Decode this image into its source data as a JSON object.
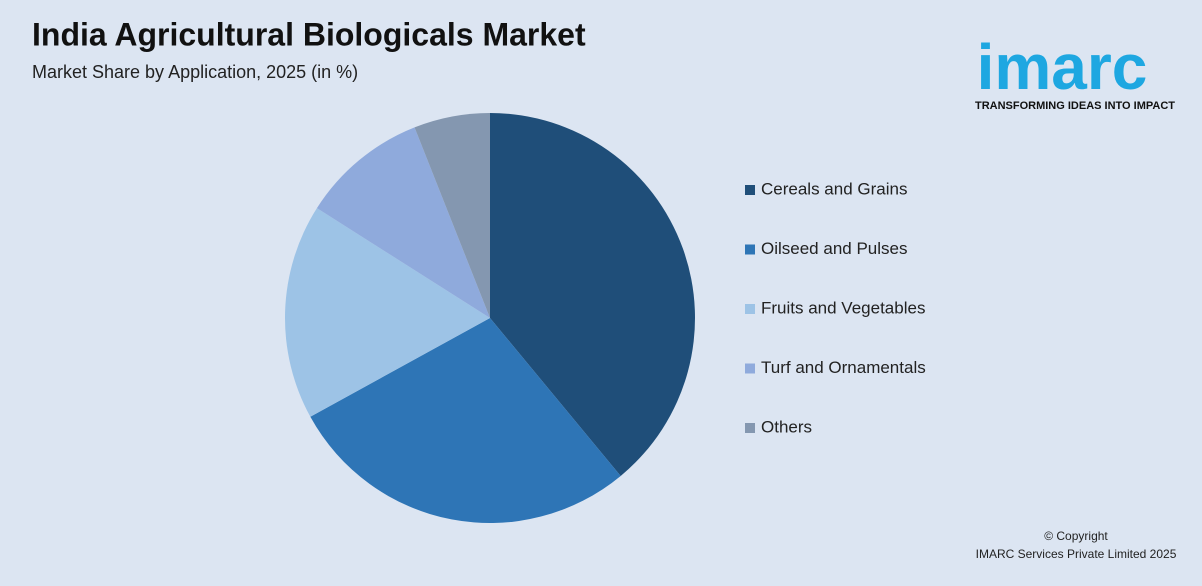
{
  "chart_data": {
    "type": "pie",
    "title": "India Agricultural Biologicals Market",
    "subtitle": "Market Share by Application, 2025 (in %)",
    "categories": [
      "Cereals and Grains",
      "Oilseed and Pulses",
      "Fruits and Vegetables",
      "Turf and Ornamentals",
      "Others"
    ],
    "values": [
      39,
      28,
      17,
      10,
      6
    ],
    "colors": [
      "#1f4e79",
      "#2e75b6",
      "#9dc3e6",
      "#8faadc",
      "#8497b0"
    ],
    "legend": "right"
  },
  "logo": {
    "name": "imarc",
    "tagline": "TRANSFORMING IDEAS INTO IMPACT"
  },
  "footer": {
    "copyright": "© Copyright",
    "company": "IMARC Services Private Limited 2025"
  }
}
